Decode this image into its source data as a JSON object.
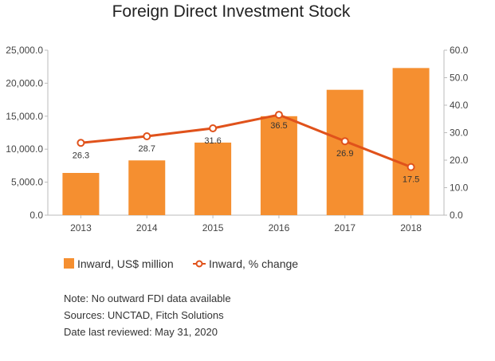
{
  "chart_data": {
    "type": "bar",
    "title": "Foreign Direct Investment Stock",
    "categories": [
      "2013",
      "2014",
      "2015",
      "2016",
      "2017",
      "2018"
    ],
    "series": [
      {
        "name": "Inward, US$ million",
        "type": "bar",
        "axis": "left",
        "color": "#f58f30",
        "values": [
          6400,
          8300,
          11000,
          15000,
          19000,
          22300
        ]
      },
      {
        "name": "Inward, % change",
        "type": "line",
        "axis": "right",
        "color": "#e0521b",
        "values": [
          26.3,
          28.7,
          31.6,
          36.5,
          26.9,
          17.5
        ],
        "labels": [
          "26.3",
          "28.7",
          "31.6",
          "36.5",
          "26.9",
          "17.5"
        ]
      }
    ],
    "y_left": {
      "ylim": [
        0,
        25000
      ],
      "ticks": [
        0,
        5000,
        10000,
        15000,
        20000,
        25000
      ],
      "tick_labels": [
        "0.0",
        "5,000.0",
        "10,000.0",
        "15,000.0",
        "20,000.0",
        "25,000.0"
      ]
    },
    "y_right": {
      "ylim": [
        0,
        60
      ],
      "ticks": [
        0,
        10,
        20,
        30,
        40,
        50,
        60
      ],
      "tick_labels": [
        "0.0",
        "10.0",
        "20.0",
        "30.0",
        "40.0",
        "50.0",
        "60.0"
      ]
    },
    "legend_position": "bottom-left",
    "grid": false
  },
  "notes": {
    "note": "Note: No outward FDI data available",
    "sources": "Sources: UNCTAD, Fitch Solutions",
    "reviewed": "Date last reviewed: May 31, 2020"
  }
}
